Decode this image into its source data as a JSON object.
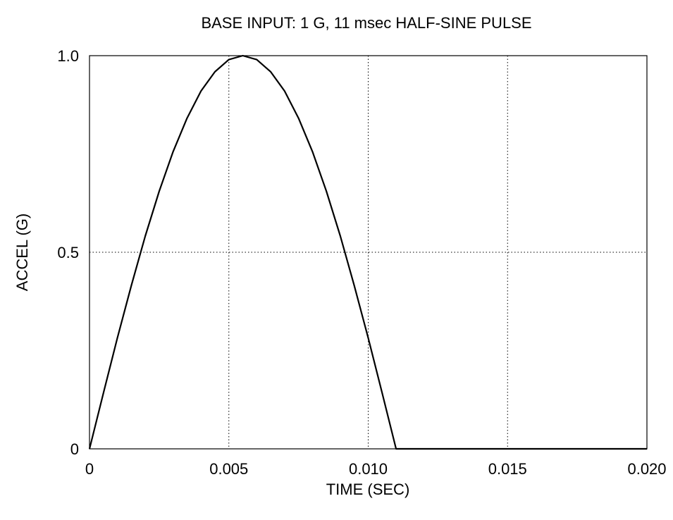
{
  "chart_data": {
    "type": "line",
    "title": "BASE INPUT:  1 G, 11 msec HALF-SINE PULSE",
    "xlabel": "TIME (SEC)",
    "ylabel": "ACCEL (G)",
    "xlim": [
      0,
      0.02
    ],
    "ylim": [
      0,
      1.0
    ],
    "grid": true,
    "grid_style": "dotted",
    "line_color": "#000000",
    "x_ticks": [
      {
        "value": 0,
        "label": "0"
      },
      {
        "value": 0.005,
        "label": "0.005"
      },
      {
        "value": 0.01,
        "label": "0.010"
      },
      {
        "value": 0.015,
        "label": "0.015"
      },
      {
        "value": 0.02,
        "label": "0.020"
      }
    ],
    "y_ticks": [
      {
        "value": 0,
        "label": "0"
      },
      {
        "value": 0.5,
        "label": "0.5"
      },
      {
        "value": 1.0,
        "label": "1.0"
      }
    ],
    "series": [
      {
        "x": [
          0,
          0.0005,
          0.001,
          0.0015,
          0.002,
          0.0025,
          0.003,
          0.0035,
          0.004,
          0.0045,
          0.005,
          0.0055,
          0.006,
          0.0065,
          0.007,
          0.0075,
          0.008,
          0.0085,
          0.009,
          0.0095,
          0.01,
          0.0105,
          0.011,
          0.012,
          0.013,
          0.014,
          0.015,
          0.016,
          0.017,
          0.018,
          0.019,
          0.02
        ],
        "y": [
          0,
          0.142,
          0.282,
          0.415,
          0.541,
          0.655,
          0.756,
          0.841,
          0.91,
          0.959,
          0.99,
          1.0,
          0.99,
          0.959,
          0.91,
          0.841,
          0.756,
          0.655,
          0.541,
          0.415,
          0.282,
          0.142,
          0,
          0,
          0,
          0,
          0,
          0,
          0,
          0,
          0,
          0
        ]
      }
    ]
  }
}
